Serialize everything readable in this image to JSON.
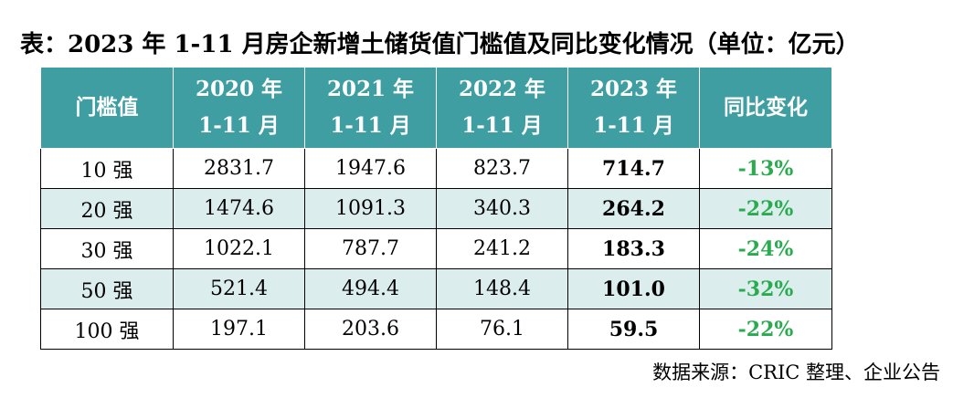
{
  "title": "表：2023 年 1-11 月房企新增土储货值门槛值及同比变化情况（单位：亿元）",
  "table": {
    "headers": [
      {
        "line1": "门槛值",
        "line2": ""
      },
      {
        "line1": "2020 年",
        "line2": "1-11 月"
      },
      {
        "line1": "2021 年",
        "line2": "1-11 月"
      },
      {
        "line1": "2022 年",
        "line2": "1-11 月"
      },
      {
        "line1": "2023 年",
        "line2": "1-11 月"
      },
      {
        "line1": "同比变化",
        "line2": ""
      }
    ],
    "rows": [
      {
        "tier": "10 强",
        "y2020": "2831.7",
        "y2021": "1947.6",
        "y2022": "823.7",
        "y2023": "714.7",
        "yoy": "-13%"
      },
      {
        "tier": "20 强",
        "y2020": "1474.6",
        "y2021": "1091.3",
        "y2022": "340.3",
        "y2023": "264.2",
        "yoy": "-22%"
      },
      {
        "tier": "30 强",
        "y2020": "1022.1",
        "y2021": "787.7",
        "y2022": "241.2",
        "y2023": "183.3",
        "yoy": "-24%"
      },
      {
        "tier": "50 强",
        "y2020": "521.4",
        "y2021": "494.4",
        "y2022": "148.4",
        "y2023": "101.0",
        "yoy": "-32%"
      },
      {
        "tier": "100 强",
        "y2020": "197.1",
        "y2021": "203.6",
        "y2022": "76.1",
        "y2023": "59.5",
        "yoy": "-22%"
      }
    ]
  },
  "source": "数据来源：CRIC 整理、企业公告",
  "colors": {
    "header_bg": "#3e9ea1",
    "header_text": "#ffffff",
    "alt_row_bg": "#dcedee",
    "yoy_text": "#2bab4f"
  }
}
